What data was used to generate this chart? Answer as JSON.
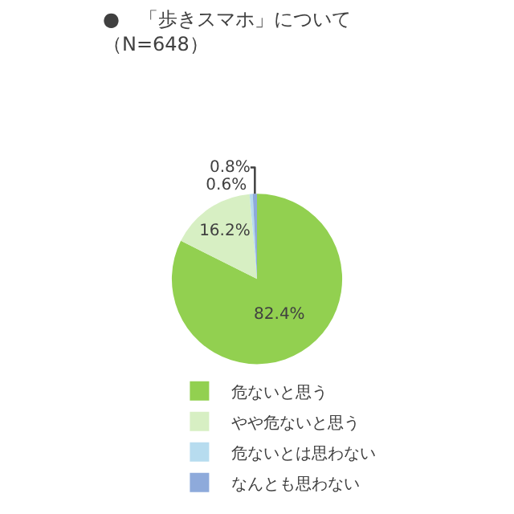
{
  "chart_data": {
    "type": "pie",
    "title": "●　「歩きスマホ」について",
    "subtitle": "（N=648）",
    "categories": [
      "危ないと思う",
      "やや危ないと思う",
      "危ないとは思わない",
      "なんとも思わない"
    ],
    "values": [
      82.4,
      16.2,
      0.6,
      0.8
    ],
    "value_labels": [
      "82.4%",
      "16.2%",
      "0.6%",
      "0.8%"
    ],
    "colors": [
      "#92d050",
      "#d7efc3",
      "#b7dcef",
      "#8eaadb"
    ],
    "legend": "bottom"
  }
}
